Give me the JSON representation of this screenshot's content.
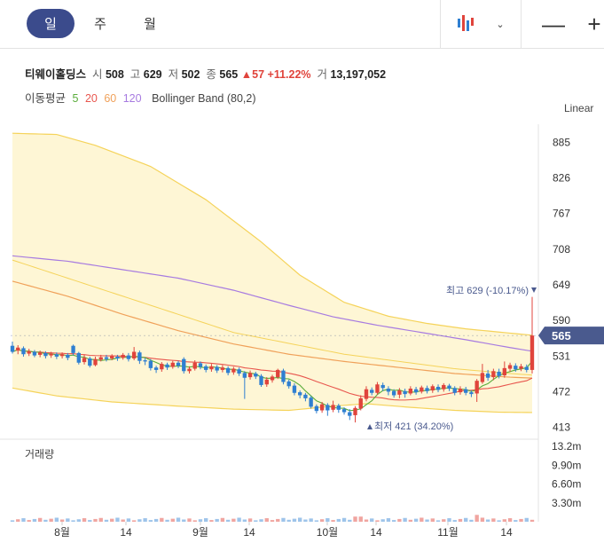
{
  "tabs": [
    {
      "label": "일",
      "active": true
    },
    {
      "label": "주",
      "active": false
    },
    {
      "label": "월",
      "active": false
    }
  ],
  "controls": {
    "zoom_out": "—",
    "zoom_in": "+"
  },
  "stock": {
    "name": "티웨이홀딩스",
    "open_label": "시",
    "open": "508",
    "high_label": "고",
    "high": "629",
    "low_label": "저",
    "low": "502",
    "close_label": "종",
    "close": "565",
    "change": "▲57",
    "change_pct": "+11.22%",
    "volume_label": "거",
    "volume": "13,197,052"
  },
  "indicators": {
    "ma_label": "이동평균",
    "ma_periods": [
      "5",
      "20",
      "60",
      "120"
    ],
    "bollinger": "Bollinger Band (80,2)"
  },
  "scale_mode": "Linear",
  "annotations": {
    "high": "최고 629 (-10.17%)",
    "low": "최저 421 (34.20%)",
    "current": "565"
  },
  "volume_panel": {
    "label": "거래량"
  },
  "colors": {
    "up": "#e0443c",
    "down": "#2f7fd1",
    "ma5": "#5aad3c",
    "ma20": "#e8564e",
    "ma60": "#f0a15a",
    "ma120": "#a77be0",
    "band": "#f5d35a",
    "accent": "#3b4b8c",
    "current_tag": "#4a5a8e"
  },
  "chart_data": {
    "type": "candlestick",
    "y_ticks": [
      885,
      826,
      767,
      708,
      649,
      590,
      531,
      472,
      413
    ],
    "ylim": [
      405,
      915
    ],
    "volume_ticks": [
      "13.2m",
      "9.90m",
      "6.60m",
      "3.30m"
    ],
    "x_ticks": [
      "8월",
      "14",
      "9월",
      "14",
      "10월",
      "14",
      "11월",
      "14"
    ],
    "candles": [
      {
        "o": 548,
        "c": 538,
        "h": 555,
        "l": 535
      },
      {
        "o": 540,
        "c": 545,
        "h": 549,
        "l": 534
      },
      {
        "o": 544,
        "c": 534,
        "h": 547,
        "l": 530
      },
      {
        "o": 535,
        "c": 539,
        "h": 543,
        "l": 531
      },
      {
        "o": 538,
        "c": 532,
        "h": 541,
        "l": 529
      },
      {
        "o": 533,
        "c": 537,
        "h": 540,
        "l": 529
      },
      {
        "o": 536,
        "c": 531,
        "h": 539,
        "l": 527
      },
      {
        "o": 532,
        "c": 535,
        "h": 538,
        "l": 528
      },
      {
        "o": 534,
        "c": 530,
        "h": 537,
        "l": 526
      },
      {
        "o": 531,
        "c": 534,
        "h": 537,
        "l": 527
      },
      {
        "o": 533,
        "c": 528,
        "h": 536,
        "l": 524
      },
      {
        "o": 548,
        "c": 536,
        "h": 550,
        "l": 532
      },
      {
        "o": 536,
        "c": 520,
        "h": 538,
        "l": 517
      },
      {
        "o": 521,
        "c": 528,
        "h": 533,
        "l": 517
      },
      {
        "o": 527,
        "c": 515,
        "h": 530,
        "l": 512
      },
      {
        "o": 516,
        "c": 526,
        "h": 530,
        "l": 514
      },
      {
        "o": 525,
        "c": 529,
        "h": 533,
        "l": 522
      },
      {
        "o": 529,
        "c": 526,
        "h": 533,
        "l": 522
      },
      {
        "o": 527,
        "c": 531,
        "h": 534,
        "l": 524
      },
      {
        "o": 530,
        "c": 527,
        "h": 533,
        "l": 523
      },
      {
        "o": 528,
        "c": 533,
        "h": 536,
        "l": 525
      },
      {
        "o": 532,
        "c": 526,
        "h": 536,
        "l": 522
      },
      {
        "o": 527,
        "c": 538,
        "h": 546,
        "l": 524
      },
      {
        "o": 537,
        "c": 523,
        "h": 540,
        "l": 518
      },
      {
        "o": 524,
        "c": 522,
        "h": 528,
        "l": 516
      },
      {
        "o": 523,
        "c": 511,
        "h": 526,
        "l": 507
      },
      {
        "o": 512,
        "c": 508,
        "h": 515,
        "l": 503
      },
      {
        "o": 509,
        "c": 518,
        "h": 521,
        "l": 505
      },
      {
        "o": 517,
        "c": 512,
        "h": 520,
        "l": 508
      },
      {
        "o": 513,
        "c": 520,
        "h": 523,
        "l": 510
      },
      {
        "o": 520,
        "c": 515,
        "h": 523,
        "l": 511
      },
      {
        "o": 526,
        "c": 506,
        "h": 529,
        "l": 502
      },
      {
        "o": 506,
        "c": 510,
        "h": 514,
        "l": 502
      },
      {
        "o": 510,
        "c": 520,
        "h": 524,
        "l": 507
      },
      {
        "o": 519,
        "c": 513,
        "h": 522,
        "l": 509
      },
      {
        "o": 514,
        "c": 508,
        "h": 517,
        "l": 504
      },
      {
        "o": 509,
        "c": 514,
        "h": 518,
        "l": 505
      },
      {
        "o": 513,
        "c": 507,
        "h": 516,
        "l": 503
      },
      {
        "o": 508,
        "c": 512,
        "h": 516,
        "l": 504
      },
      {
        "o": 511,
        "c": 503,
        "h": 514,
        "l": 499
      },
      {
        "o": 504,
        "c": 510,
        "h": 513,
        "l": 500
      },
      {
        "o": 509,
        "c": 502,
        "h": 512,
        "l": 498
      },
      {
        "o": 503,
        "c": 495,
        "h": 506,
        "l": 460
      },
      {
        "o": 496,
        "c": 503,
        "h": 507,
        "l": 492
      },
      {
        "o": 502,
        "c": 497,
        "h": 505,
        "l": 493
      },
      {
        "o": 498,
        "c": 483,
        "h": 501,
        "l": 480
      },
      {
        "o": 484,
        "c": 492,
        "h": 496,
        "l": 480
      },
      {
        "o": 491,
        "c": 497,
        "h": 500,
        "l": 487
      },
      {
        "o": 496,
        "c": 508,
        "h": 510,
        "l": 493
      },
      {
        "o": 507,
        "c": 488,
        "h": 510,
        "l": 484
      },
      {
        "o": 489,
        "c": 481,
        "h": 492,
        "l": 477
      },
      {
        "o": 482,
        "c": 470,
        "h": 486,
        "l": 466
      },
      {
        "o": 471,
        "c": 466,
        "h": 474,
        "l": 461
      },
      {
        "o": 467,
        "c": 461,
        "h": 470,
        "l": 456
      },
      {
        "o": 462,
        "c": 447,
        "h": 465,
        "l": 444
      },
      {
        "o": 448,
        "c": 440,
        "h": 451,
        "l": 436
      },
      {
        "o": 441,
        "c": 451,
        "h": 455,
        "l": 437
      },
      {
        "o": 450,
        "c": 441,
        "h": 453,
        "l": 432
      },
      {
        "o": 442,
        "c": 450,
        "h": 457,
        "l": 438
      },
      {
        "o": 449,
        "c": 442,
        "h": 452,
        "l": 437
      },
      {
        "o": 443,
        "c": 438,
        "h": 446,
        "l": 434
      },
      {
        "o": 438,
        "c": 432,
        "h": 443,
        "l": 425
      },
      {
        "o": 433,
        "c": 445,
        "h": 448,
        "l": 421
      },
      {
        "o": 444,
        "c": 461,
        "h": 466,
        "l": 441
      },
      {
        "o": 460,
        "c": 476,
        "h": 481,
        "l": 456
      },
      {
        "o": 475,
        "c": 470,
        "h": 479,
        "l": 466
      },
      {
        "o": 470,
        "c": 484,
        "h": 488,
        "l": 467
      },
      {
        "o": 483,
        "c": 478,
        "h": 487,
        "l": 473
      },
      {
        "o": 477,
        "c": 472,
        "h": 481,
        "l": 466
      },
      {
        "o": 473,
        "c": 466,
        "h": 476,
        "l": 462
      },
      {
        "o": 467,
        "c": 474,
        "h": 478,
        "l": 461
      },
      {
        "o": 473,
        "c": 468,
        "h": 477,
        "l": 462
      },
      {
        "o": 469,
        "c": 477,
        "h": 481,
        "l": 466
      },
      {
        "o": 476,
        "c": 471,
        "h": 480,
        "l": 467
      },
      {
        "o": 472,
        "c": 479,
        "h": 482,
        "l": 469
      },
      {
        "o": 478,
        "c": 473,
        "h": 482,
        "l": 469
      },
      {
        "o": 474,
        "c": 481,
        "h": 484,
        "l": 470
      },
      {
        "o": 480,
        "c": 475,
        "h": 484,
        "l": 471
      },
      {
        "o": 476,
        "c": 483,
        "h": 486,
        "l": 472
      },
      {
        "o": 482,
        "c": 477,
        "h": 485,
        "l": 473
      },
      {
        "o": 478,
        "c": 470,
        "h": 481,
        "l": 466
      },
      {
        "o": 471,
        "c": 477,
        "h": 481,
        "l": 467
      },
      {
        "o": 476,
        "c": 470,
        "h": 480,
        "l": 466
      },
      {
        "o": 471,
        "c": 468,
        "h": 474,
        "l": 463
      },
      {
        "o": 469,
        "c": 490,
        "h": 493,
        "l": 455
      },
      {
        "o": 488,
        "c": 503,
        "h": 518,
        "l": 485
      },
      {
        "o": 502,
        "c": 495,
        "h": 508,
        "l": 490
      },
      {
        "o": 496,
        "c": 506,
        "h": 510,
        "l": 491
      },
      {
        "o": 505,
        "c": 498,
        "h": 510,
        "l": 494
      },
      {
        "o": 499,
        "c": 511,
        "h": 522,
        "l": 495
      },
      {
        "o": 510,
        "c": 516,
        "h": 520,
        "l": 505
      },
      {
        "o": 515,
        "c": 509,
        "h": 519,
        "l": 505
      },
      {
        "o": 510,
        "c": 514,
        "h": 518,
        "l": 506
      },
      {
        "o": 513,
        "c": 508,
        "h": 517,
        "l": 504
      },
      {
        "o": 508,
        "c": 565,
        "h": 629,
        "l": 502
      }
    ]
  }
}
